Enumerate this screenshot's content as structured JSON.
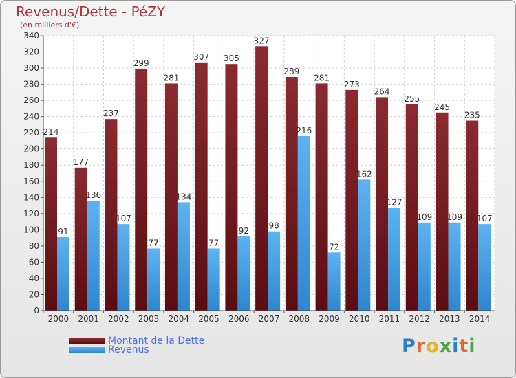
{
  "title": "Revenus/Dette - PéZY",
  "subtitle": "(en milliers d'€)",
  "colors": {
    "dette": "#7b1f24",
    "revenus": "#4aa3e6",
    "title": "#b2333a",
    "legend_text": "#4a6fe0"
  },
  "legend": {
    "dette_label": "Montant de la Dette",
    "revenus_label": "Revenus"
  },
  "logo": {
    "text": "Proxiti"
  },
  "chart_data": {
    "type": "bar",
    "title": "Revenus/Dette - PéZY",
    "subtitle": "(en milliers d'€)",
    "categories": [
      "2000",
      "2001",
      "2002",
      "2003",
      "2004",
      "2005",
      "2006",
      "2007",
      "2008",
      "2009",
      "2010",
      "2011",
      "2012",
      "2013",
      "2014"
    ],
    "series": [
      {
        "name": "Montant de la Dette",
        "values": [
          214,
          177,
          237,
          299,
          281,
          307,
          305,
          327,
          289,
          281,
          273,
          264,
          255,
          245,
          235
        ]
      },
      {
        "name": "Revenus",
        "values": [
          91,
          136,
          107,
          77,
          134,
          77,
          92,
          98,
          216,
          72,
          162,
          127,
          109,
          109,
          107
        ]
      }
    ],
    "ylim": [
      0,
      340
    ],
    "ytick_step": 20,
    "grid": true,
    "legend_position": "bottom-left"
  }
}
